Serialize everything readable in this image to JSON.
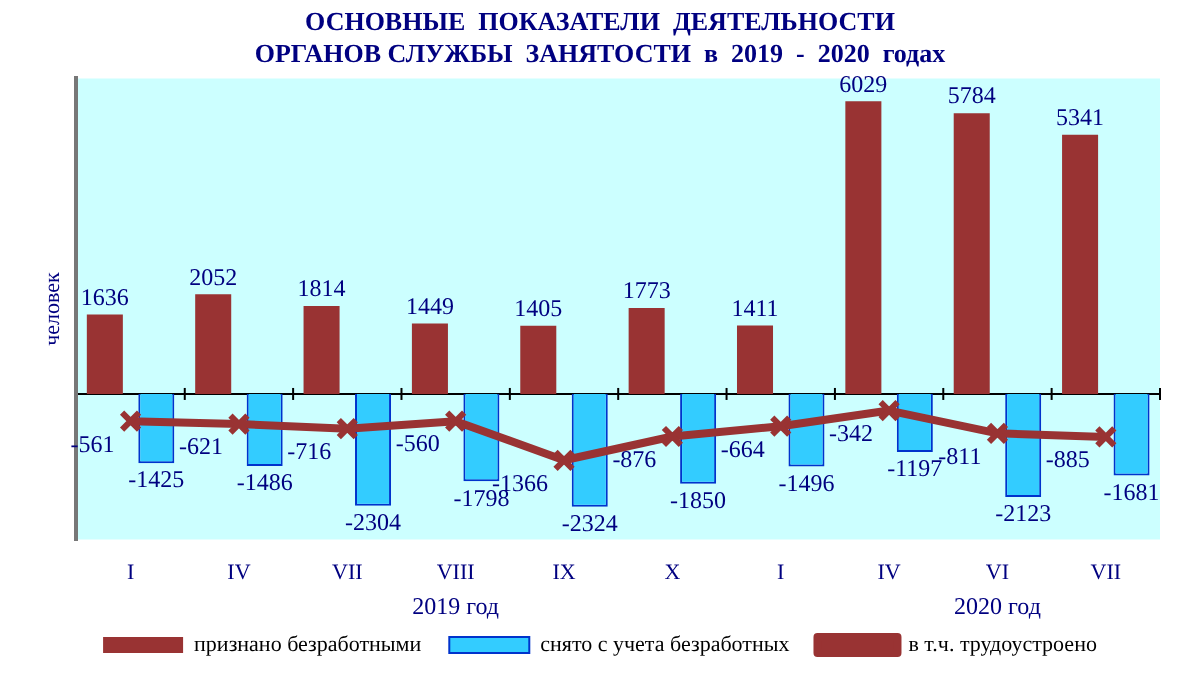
{
  "chart_data": {
    "type": "bar",
    "title": "ОСНОВНЫЕ  ПОКАЗАТЕЛИ  ДЕЯТЕЛЬНОСТИ\nОРГАНОВ СЛУЖБЫ  ЗАНЯТОСТИ  в  2019  -  2020  годах",
    "ylabel": "человек",
    "categories": [
      "I",
      "IV",
      "VII",
      "VIII",
      "IX",
      "X",
      "I",
      "IV",
      "VI",
      "VII"
    ],
    "series": [
      {
        "name": "признано безработными",
        "color": "#993333",
        "values": [
          1636,
          2052,
          1814,
          1449,
          1405,
          1773,
          1411,
          6029,
          5784,
          5341
        ]
      },
      {
        "name": "снято с учета безработных",
        "color": "#33ccff",
        "values": [
          -1425,
          -1486,
          -2304,
          -1798,
          -2324,
          -1850,
          -1496,
          -1197,
          -2123,
          -1681
        ]
      },
      {
        "name": "в т.ч. трудоустроено",
        "type": "line",
        "color": "#993333",
        "values": [
          -561,
          -621,
          -716,
          -560,
          -1366,
          -876,
          -664,
          -342,
          -811,
          -885
        ]
      }
    ],
    "annotations": [
      "2019 год",
      "2020 год"
    ],
    "ylim": [
      -3000,
      6500
    ],
    "tick_labels": "x",
    "data_labels": true,
    "legend": "bottom",
    "marker": "cross",
    "grid": false
  }
}
